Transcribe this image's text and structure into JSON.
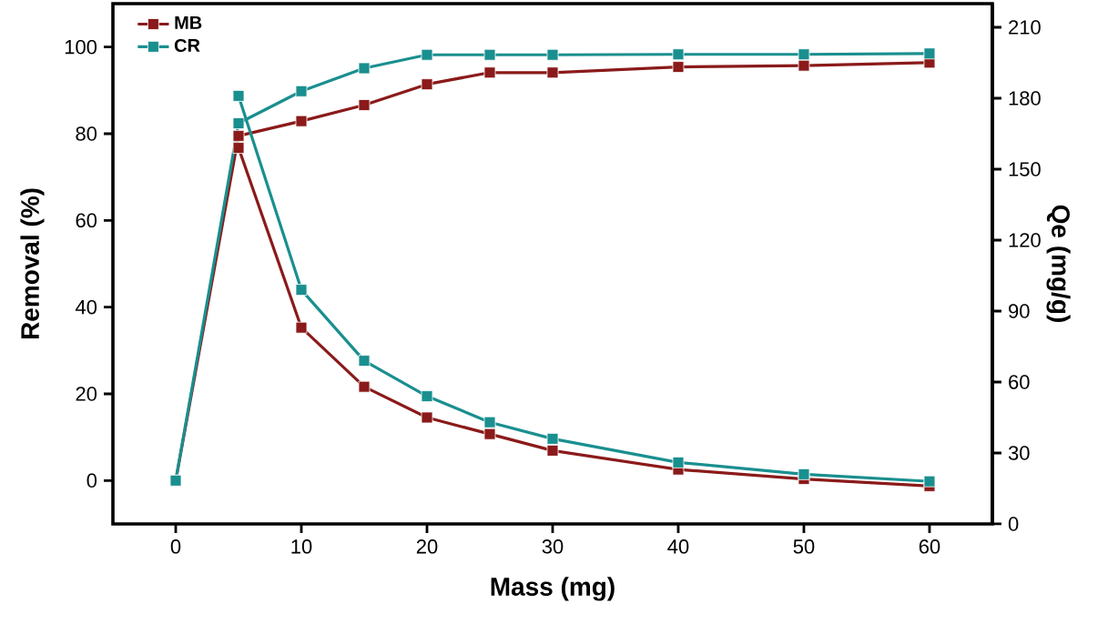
{
  "chart_data": {
    "type": "line",
    "xlabel": "Mass (mg)",
    "ylabel": "Removal (%)",
    "y2label": "Qe (mg/g)",
    "xlim": [
      -5,
      65
    ],
    "xticks": [
      0,
      10,
      20,
      30,
      40,
      50,
      60
    ],
    "ylim": [
      -10,
      110
    ],
    "yticks": [
      0,
      20,
      40,
      60,
      80,
      100
    ],
    "y2lim": [
      0,
      220
    ],
    "y2ticks": [
      0,
      30,
      60,
      90,
      120,
      150,
      180,
      210
    ],
    "legend": "top left",
    "marker": "square",
    "line_style": "solid",
    "series": [
      {
        "name": "MB",
        "color": "#8b1a1a",
        "x": [
          0,
          5,
          10,
          15,
          20,
          25,
          30,
          40,
          50,
          60
        ],
        "values": [
          0,
          79.5,
          82.9,
          86.6,
          91.4,
          94.1,
          94.1,
          95.4,
          95.7,
          96.4
        ]
      },
      {
        "name": "CR",
        "color": "#1a8f8f",
        "x": [
          0,
          5,
          10,
          15,
          20,
          25,
          30,
          40,
          50,
          60
        ],
        "values": [
          0,
          82.4,
          89.8,
          95.1,
          98.2,
          98.2,
          98.2,
          98.3,
          98.3,
          98.5
        ]
      },
      {
        "color": "#8b1a1a",
        "axis": "y2",
        "x": [
          5,
          10,
          15,
          20,
          25,
          30,
          40,
          50,
          60
        ],
        "values": [
          159,
          83,
          58,
          45,
          38,
          31,
          23,
          19,
          16
        ]
      },
      {
        "color": "#1a8f8f",
        "axis": "y2",
        "x": [
          5,
          10,
          15,
          20,
          25,
          30,
          40,
          50,
          60
        ],
        "values": [
          181,
          99,
          69,
          54,
          43,
          36,
          26,
          21,
          18
        ]
      }
    ]
  }
}
